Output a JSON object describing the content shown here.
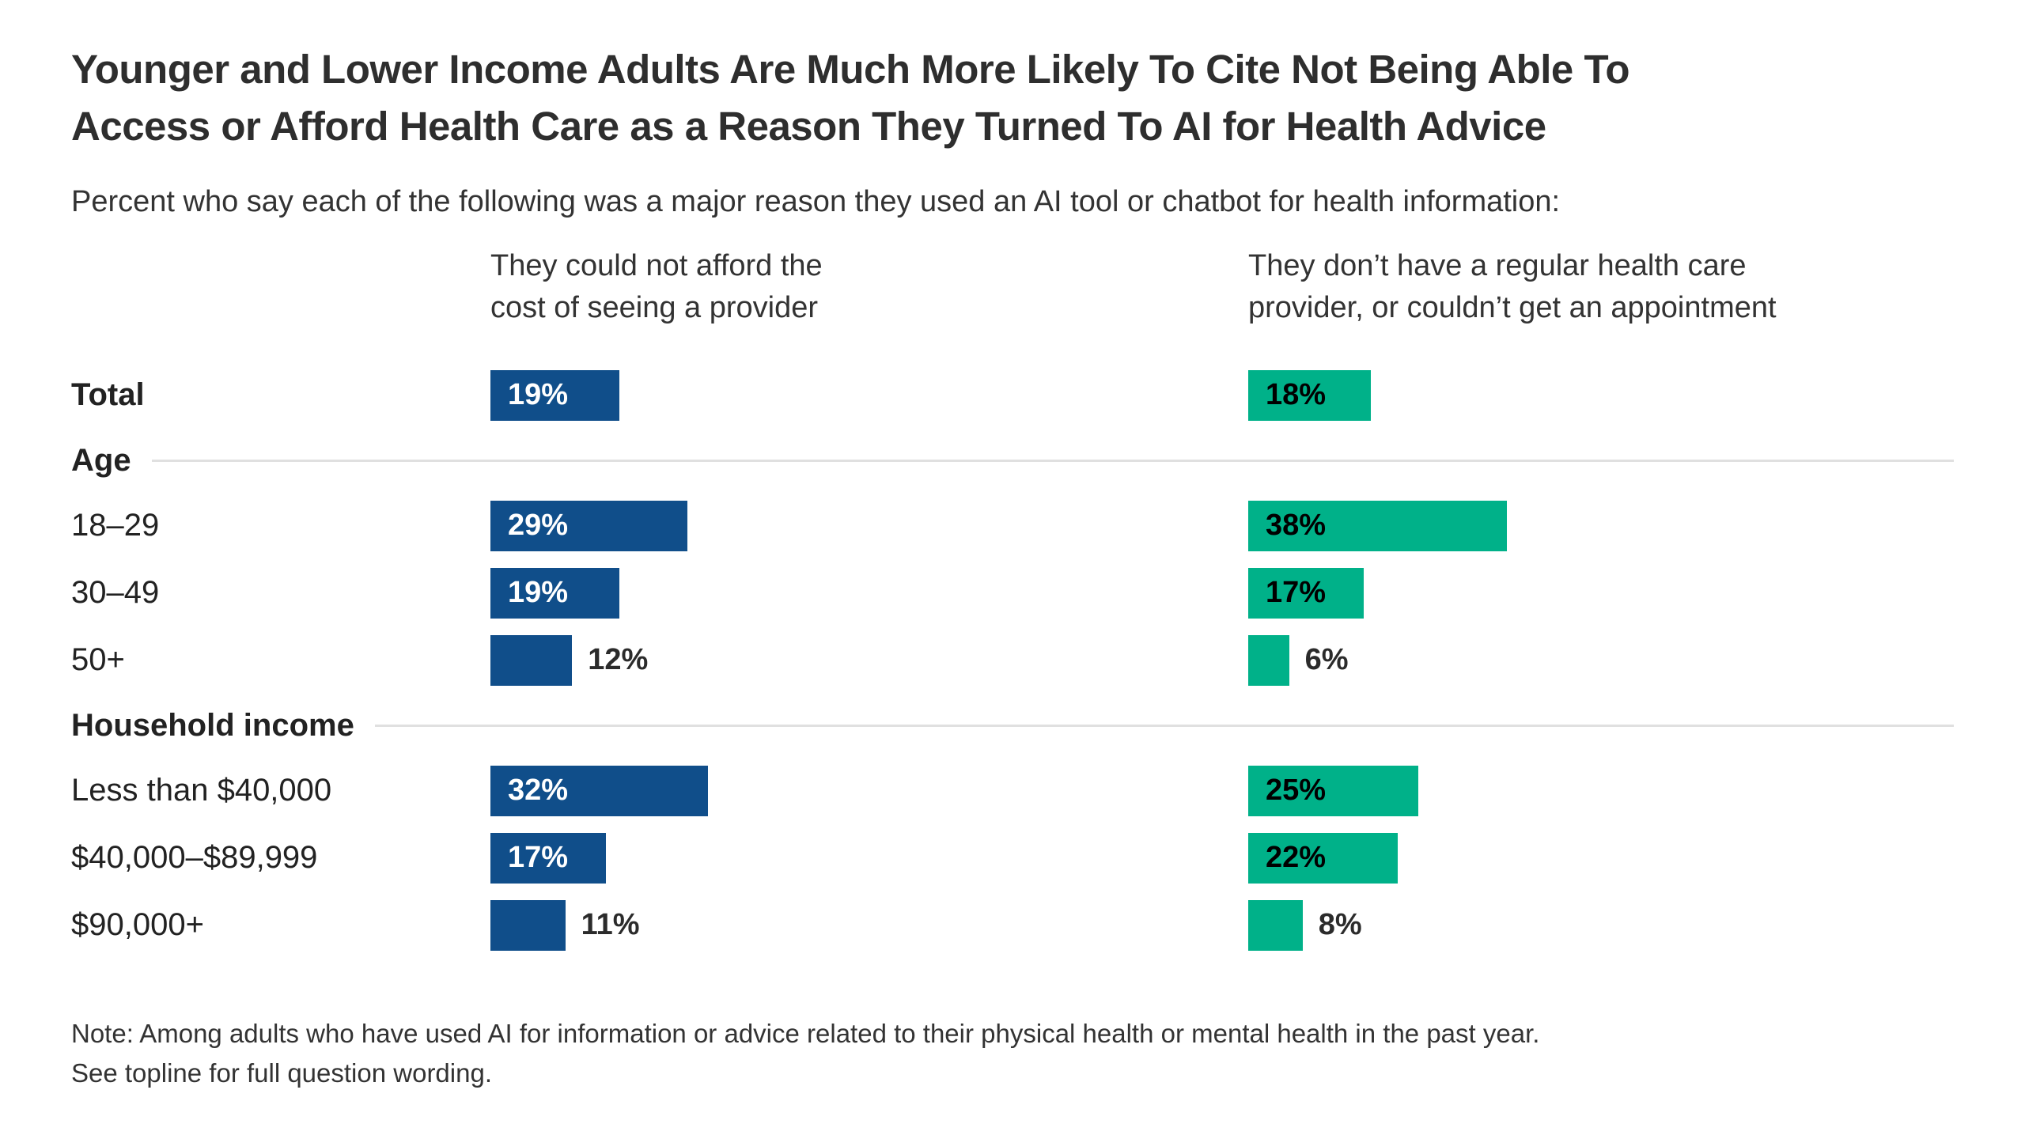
{
  "title_lines": [
    "Younger and Lower Income Adults Are Much More Likely To Cite Not Being Able To",
    "Access or Afford Health Care as a Reason They Turned To AI for Health Advice"
  ],
  "subtitle": "Percent who say each of the following was a major reason they used an AI tool or chatbot for health information:",
  "colors": {
    "blue": "#104E8A",
    "green": "#00B189",
    "divider": "#e0e0e0",
    "outside_label": "#2b2b2b"
  },
  "columns": [
    {
      "id": "afford",
      "header_lines": [
        "They could not afford the",
        "cost of seeing a provider"
      ],
      "color": "#104E8A",
      "inside_label_color": "#ffffff"
    },
    {
      "id": "access",
      "header_lines": [
        "They don’t have a regular health care",
        "provider, or couldn’t get an appointment"
      ],
      "color": "#00B189",
      "inside_label_color": "#000000"
    }
  ],
  "rows": [
    {
      "type": "bar",
      "id": "total",
      "label": "Total",
      "bold": true,
      "values": [
        19,
        18
      ],
      "labels": [
        "19%",
        "18%"
      ]
    },
    {
      "type": "section",
      "id": "age",
      "label": "Age"
    },
    {
      "type": "bar",
      "id": "18-29",
      "label": "18–29",
      "bold": false,
      "values": [
        29,
        38
      ],
      "labels": [
        "29%",
        "38%"
      ]
    },
    {
      "type": "bar",
      "id": "30-49",
      "label": "30–49",
      "bold": false,
      "values": [
        19,
        17
      ],
      "labels": [
        "19%",
        "17%"
      ]
    },
    {
      "type": "bar",
      "id": "50plus",
      "label": "50+",
      "bold": false,
      "values": [
        12,
        6
      ],
      "labels": [
        "12%",
        "6%"
      ]
    },
    {
      "type": "section",
      "id": "household-income",
      "label": "Household income"
    },
    {
      "type": "bar",
      "id": "less-than-40k",
      "label": "Less than $40,000",
      "bold": false,
      "values": [
        32,
        25
      ],
      "labels": [
        "32%",
        "25%"
      ]
    },
    {
      "type": "bar",
      "id": "40k-89k",
      "label": "$40,000–$89,999",
      "bold": false,
      "values": [
        17,
        22
      ],
      "labels": [
        "17%",
        "22%"
      ]
    },
    {
      "type": "bar",
      "id": "90kplus",
      "label": "$90,000+",
      "bold": false,
      "values": [
        11,
        8
      ],
      "labels": [
        "11%",
        "8%"
      ]
    }
  ],
  "note_lines": [
    "Note: Among adults who have used AI for information or advice related to their physical health or mental health in the past year.",
    "See topline for full question wording."
  ],
  "chart_data": {
    "type": "bar",
    "orientation": "horizontal",
    "title": "Younger and Lower Income Adults Are Much More Likely To Cite Not Being Able To Access or Afford Health Care as a Reason They Turned To AI for Health Advice",
    "subtitle": "Percent who say each of the following was a major reason they used an AI tool or chatbot for health information:",
    "categories": [
      "Total",
      "18–29",
      "30–49",
      "50+",
      "Less than $40,000",
      "$40,000–$89,999",
      "$90,000+"
    ],
    "category_groups": [
      {
        "group": "Age",
        "categories": [
          "18–29",
          "30–49",
          "50+"
        ]
      },
      {
        "group": "Household income",
        "categories": [
          "Less than $40,000",
          "$40,000–$89,999",
          "$90,000+"
        ]
      }
    ],
    "series": [
      {
        "name": "They could not afford the cost of seeing a provider",
        "color": "#104E8A",
        "values": [
          19,
          29,
          19,
          12,
          32,
          17,
          11
        ]
      },
      {
        "name": "They don’t have a regular health care provider, or couldn’t get an appointment",
        "color": "#00B189",
        "values": [
          18,
          38,
          17,
          6,
          25,
          22,
          8
        ]
      }
    ],
    "unit": "%",
    "value_labels_shown": true,
    "axis_hidden": true,
    "grid": false,
    "legend_position": "column-headers-top",
    "note": "Note: Among adults who have used AI for information or advice related to their physical health or mental health in the past year. See topline for full question wording."
  }
}
